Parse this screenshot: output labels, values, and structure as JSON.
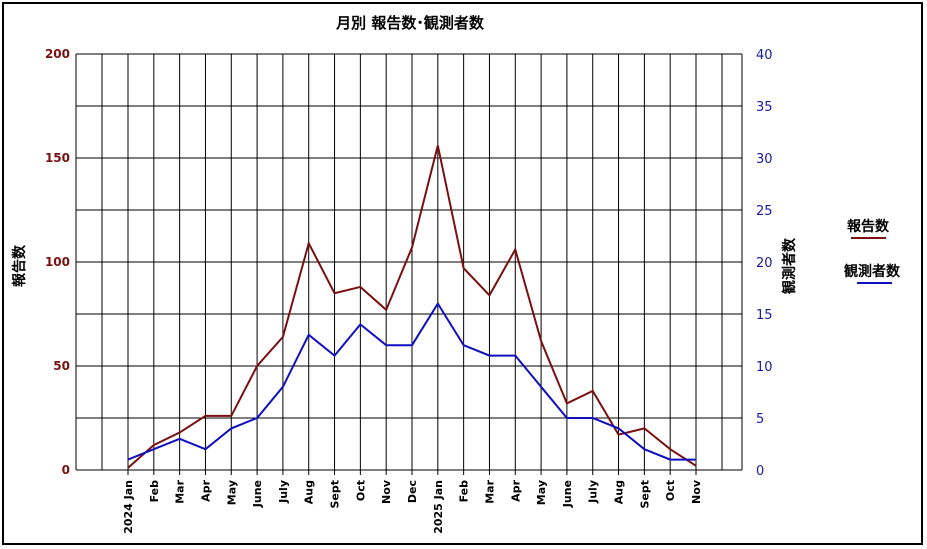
{
  "chart_data": {
    "type": "line",
    "title": "月別  報告数･観測者数",
    "ylabel_left": "報告数",
    "ylabel_right": "観測者数",
    "categories": [
      "2024 Jan",
      "Feb",
      "Mar",
      "Apr",
      "May",
      "June",
      "July",
      "Aug",
      "Sept",
      "Oct",
      "Nov",
      "Dec",
      "2025 Jan",
      "Feb",
      "Mar",
      "Apr",
      "May",
      "June",
      "July",
      "Aug",
      "Sept",
      "Oct",
      "Nov"
    ],
    "ylim_left": [
      0,
      200
    ],
    "ylim_right": [
      0,
      40
    ],
    "yticks_left": [
      0,
      50,
      100,
      150,
      200
    ],
    "yticks_right": [
      0,
      5,
      10,
      15,
      20,
      25,
      30,
      35,
      40
    ],
    "grid": true,
    "legend_position": "right",
    "series": [
      {
        "name": "報告数",
        "axis": "left",
        "color": "#7a1010",
        "values": [
          1,
          12,
          18,
          26,
          26,
          50,
          64,
          109,
          85,
          88,
          77,
          107,
          156,
          97,
          84,
          106,
          62,
          32,
          38,
          17,
          20,
          10,
          2
        ]
      },
      {
        "name": "観測者数",
        "axis": "right",
        "color": "#1010c0",
        "values": [
          1,
          2,
          3,
          2,
          4,
          5,
          8,
          13,
          11,
          14,
          12,
          12,
          16,
          12,
          11,
          11,
          8,
          5,
          5,
          4,
          2,
          1,
          1
        ]
      }
    ]
  }
}
